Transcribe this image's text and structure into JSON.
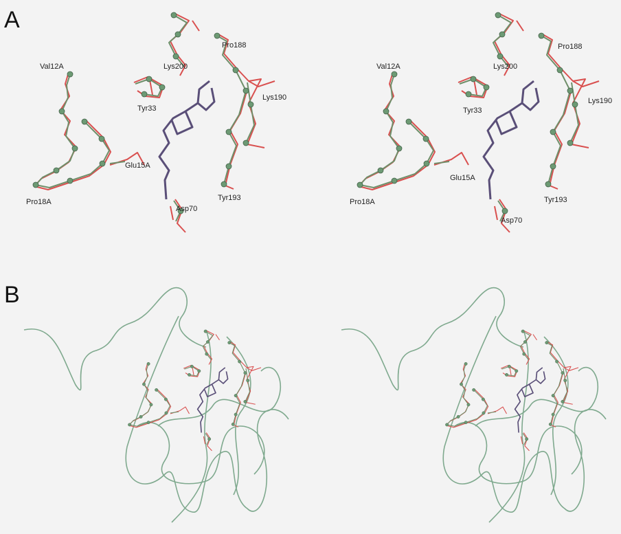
{
  "panels": [
    {
      "letter": "A",
      "views": [
        {
          "labels": [
            "Val12A",
            "Lys200",
            "Pro188",
            "Tyr33",
            "Lys190",
            "Glu15A",
            "Pro18A",
            "Tyr193",
            "Asp70"
          ]
        },
        {
          "labels": [
            "Val12A",
            "Lys200",
            "Pro188",
            "Tyr33",
            "Lys190",
            "Glu15A",
            "Pro18A",
            "Tyr193",
            "Asp70"
          ]
        }
      ]
    },
    {
      "letter": "B"
    }
  ]
}
